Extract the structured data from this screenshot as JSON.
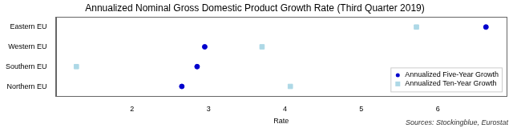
{
  "chart_data": {
    "type": "scatter",
    "title": "Annualized Nominal Gross Domestic Product Growth Rate (Third Quarter 2019)",
    "x_label": "Rate",
    "annotations": [
      "Sources: Stockingblue, Eurostat"
    ],
    "categories": [
      "Eastern EU",
      "Western EU",
      "Southern EU",
      "Northern EU"
    ],
    "series": [
      {
        "name": "Annualized Five-Year Growth",
        "color": "#0000cd",
        "marker": "circle",
        "values": [
          6.63,
          2.95,
          2.85,
          2.65
        ]
      },
      {
        "name": "Annualized Ten-Year Growth",
        "color": "#add8e6",
        "marker": "square",
        "values": [
          5.72,
          3.7,
          1.27,
          4.07
        ]
      }
    ],
    "xlim": [
      1.0,
      6.9
    ],
    "xticks": [
      2,
      3,
      4,
      5,
      6
    ],
    "grid": false,
    "legend": "lower right"
  }
}
